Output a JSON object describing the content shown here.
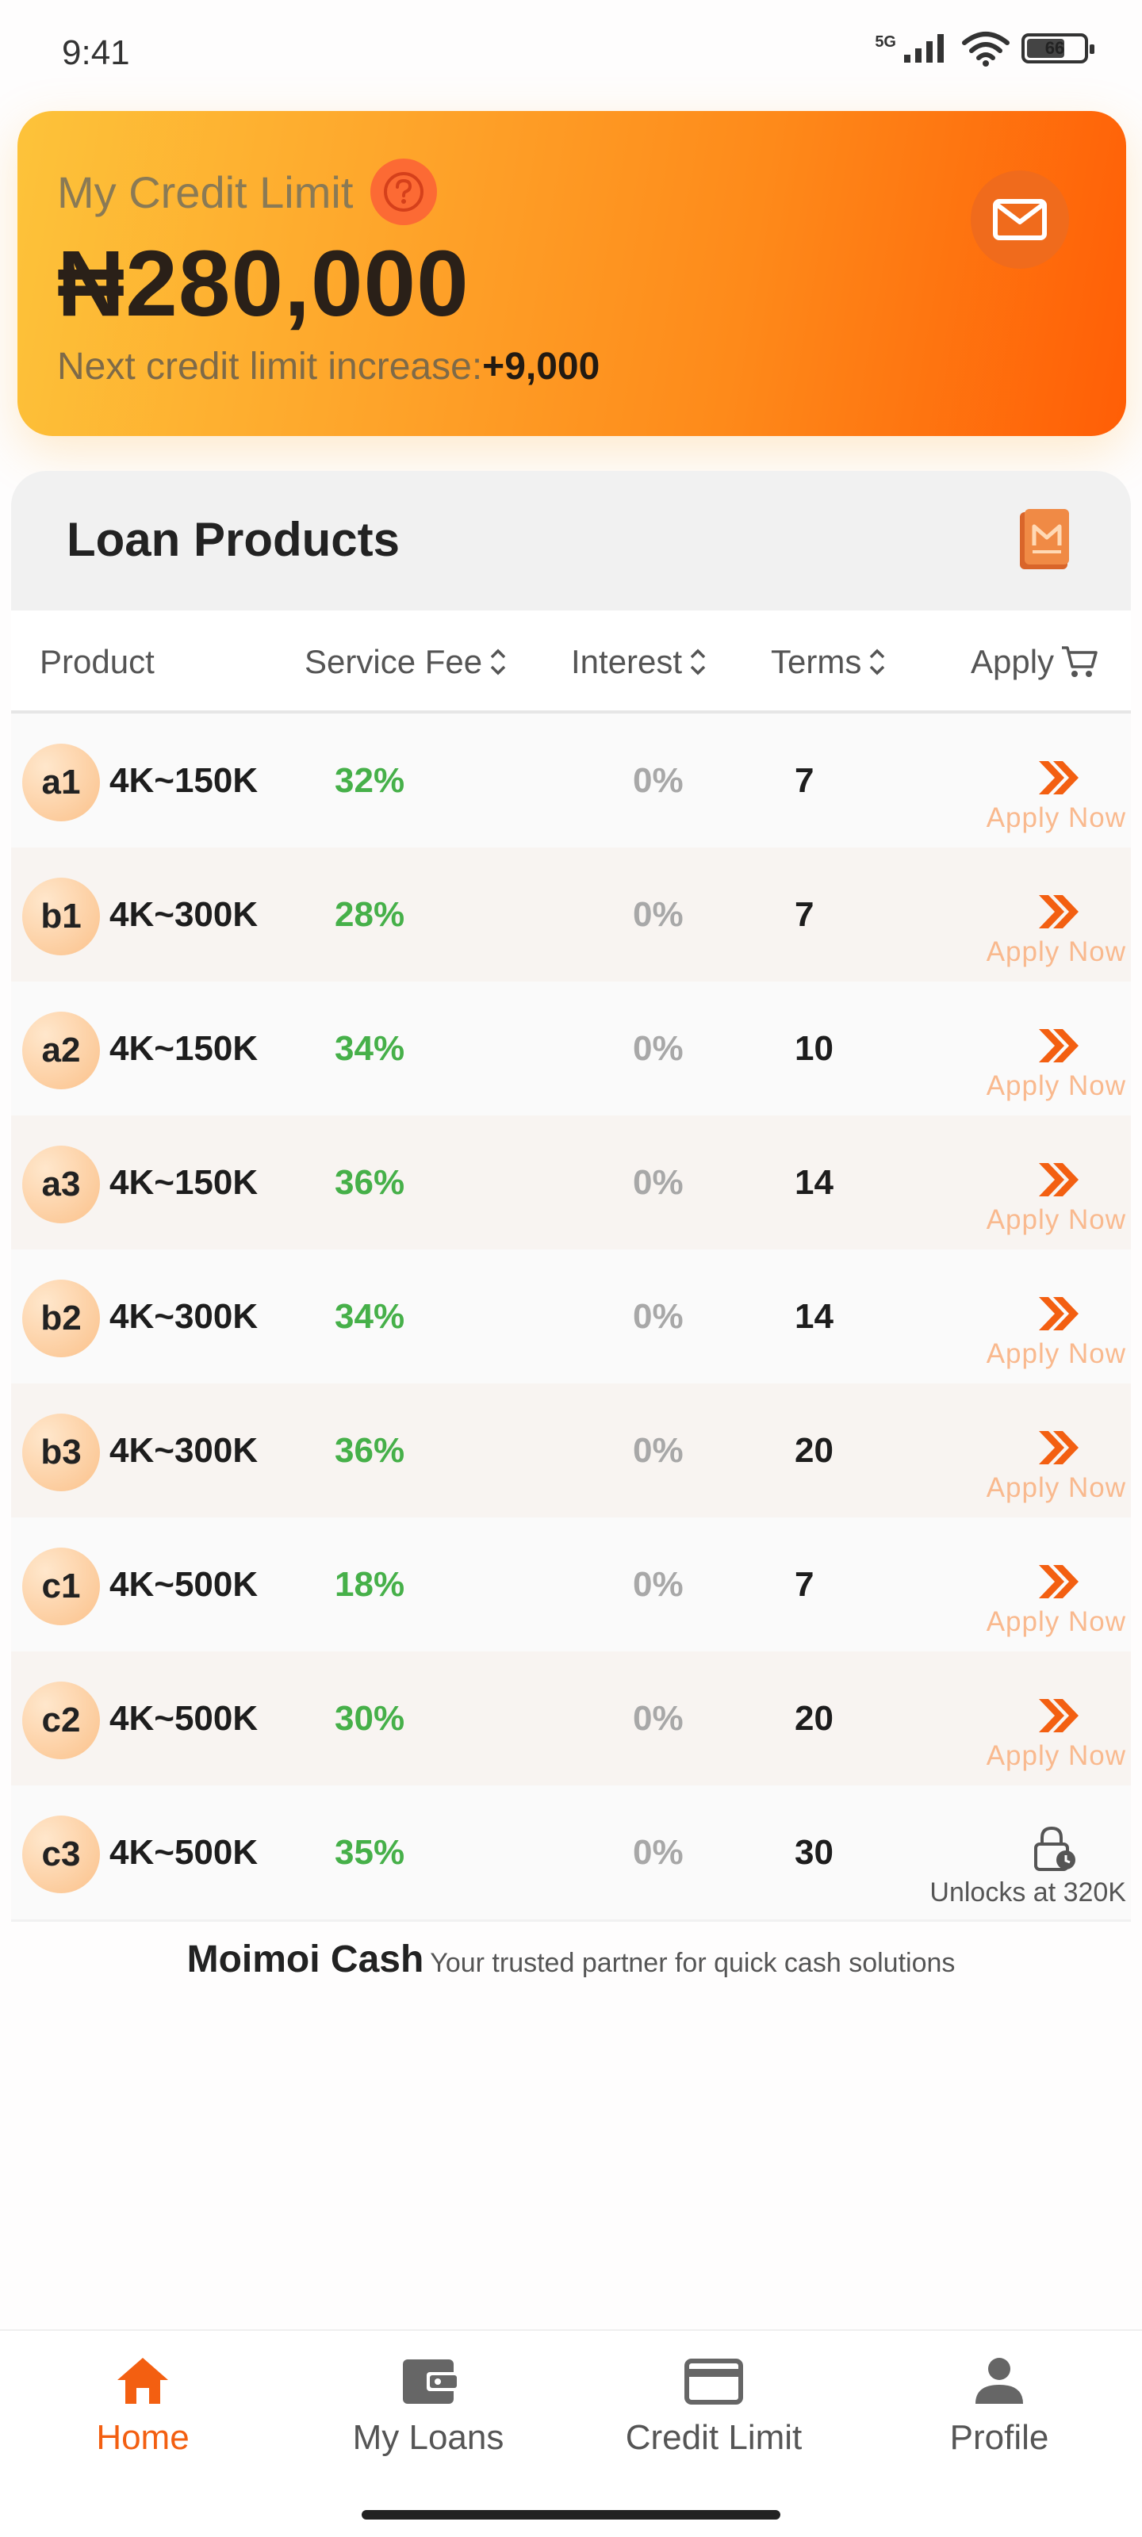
{
  "status_bar": {
    "time": "9:41",
    "network": "5G",
    "battery": "66"
  },
  "credit": {
    "title": "My Credit Limit",
    "amount": "₦280,000",
    "next_label": "Next credit limit increase:",
    "next_value": "+9,000"
  },
  "products": {
    "title": "Loan Products",
    "headers": {
      "product": "Product",
      "service_fee": "Service Fee",
      "interest": "Interest",
      "terms": "Terms",
      "apply": "Apply"
    },
    "rows": [
      {
        "code": "a1",
        "range": "4K~150K",
        "fee": "32%",
        "interest": "0%",
        "terms": "7",
        "action": "Apply Now",
        "locked": false
      },
      {
        "code": "b1",
        "range": "4K~300K",
        "fee": "28%",
        "interest": "0%",
        "terms": "7",
        "action": "Apply Now",
        "locked": false
      },
      {
        "code": "a2",
        "range": "4K~150K",
        "fee": "34%",
        "interest": "0%",
        "terms": "10",
        "action": "Apply Now",
        "locked": false
      },
      {
        "code": "a3",
        "range": "4K~150K",
        "fee": "36%",
        "interest": "0%",
        "terms": "14",
        "action": "Apply Now",
        "locked": false
      },
      {
        "code": "b2",
        "range": "4K~300K",
        "fee": "34%",
        "interest": "0%",
        "terms": "14",
        "action": "Apply Now",
        "locked": false
      },
      {
        "code": "b3",
        "range": "4K~300K",
        "fee": "36%",
        "interest": "0%",
        "terms": "20",
        "action": "Apply Now",
        "locked": false
      },
      {
        "code": "c1",
        "range": "4K~500K",
        "fee": "18%",
        "interest": "0%",
        "terms": "7",
        "action": "Apply Now",
        "locked": false
      },
      {
        "code": "c2",
        "range": "4K~500K",
        "fee": "30%",
        "interest": "0%",
        "terms": "20",
        "action": "Apply Now",
        "locked": false
      },
      {
        "code": "c3",
        "range": "4K~500K",
        "fee": "35%",
        "interest": "0%",
        "terms": "30",
        "action": "Unlocks at 320K",
        "locked": true
      }
    ]
  },
  "footer": {
    "brand": "Moimoi Cash",
    "tagline": "Your trusted partner for quick cash solutions"
  },
  "nav": [
    {
      "label": "Home",
      "icon": "home-icon",
      "active": true
    },
    {
      "label": "My Loans",
      "icon": "wallet-icon",
      "active": false
    },
    {
      "label": "Credit Limit",
      "icon": "credit-card-icon",
      "active": false
    },
    {
      "label": "Profile",
      "icon": "person-icon",
      "active": false
    }
  ],
  "colors": {
    "accent": "#f35f11",
    "fee_green": "#46b049",
    "interest_gray": "#a8a8a8"
  }
}
